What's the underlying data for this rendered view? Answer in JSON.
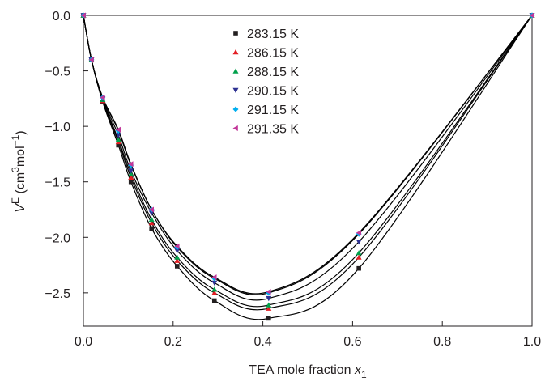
{
  "chart_data": {
    "type": "scatter",
    "x": [
      0.0,
      0.018,
      0.043,
      0.078,
      0.106,
      0.152,
      0.209,
      0.292,
      0.413,
      0.614,
      1.0
    ],
    "series": [
      {
        "name": "283.15 K",
        "color": "#231f20",
        "marker": "square",
        "values": [
          0,
          -0.4,
          -0.78,
          -1.17,
          -1.5,
          -1.92,
          -2.26,
          -2.57,
          -2.73,
          -2.28,
          0
        ]
      },
      {
        "name": "286.15 K",
        "color": "#e31e24",
        "marker": "triangle-up",
        "values": [
          0,
          -0.4,
          -0.77,
          -1.14,
          -1.46,
          -1.87,
          -2.21,
          -2.5,
          -2.64,
          -2.18,
          0
        ]
      },
      {
        "name": "288.15 K",
        "color": "#00a14b",
        "marker": "triangle-up",
        "values": [
          0,
          -0.4,
          -0.76,
          -1.12,
          -1.43,
          -1.84,
          -2.18,
          -2.47,
          -2.61,
          -2.14,
          0
        ]
      },
      {
        "name": "290.15 K",
        "color": "#2e3192",
        "marker": "triangle-down",
        "values": [
          0,
          -0.4,
          -0.75,
          -1.08,
          -1.4,
          -1.78,
          -2.12,
          -2.41,
          -2.55,
          -2.04,
          0
        ]
      },
      {
        "name": "291.15 K",
        "color": "#00aeef",
        "marker": "diamond",
        "values": [
          0,
          -0.4,
          -0.74,
          -1.04,
          -1.35,
          -1.75,
          -2.09,
          -2.37,
          -2.5,
          -1.97,
          0
        ]
      },
      {
        "name": "291.35 K",
        "color": "#c2389a",
        "marker": "triangle-left",
        "values": [
          0,
          -0.4,
          -0.74,
          -1.03,
          -1.34,
          -1.75,
          -2.08,
          -2.36,
          -2.49,
          -1.96,
          0
        ]
      }
    ],
    "fit_color": "#000000",
    "xlabel": [
      "TEA mole fraction ",
      "x",
      "1"
    ],
    "ylabel": [
      "V",
      "E",
      " (cm",
      "3",
      "mol",
      "−1",
      ")"
    ],
    "xlim": [
      0,
      1
    ],
    "ylim": [
      -2.8,
      0
    ],
    "xticks": [
      {
        "value": 0,
        "label": "0.0"
      },
      {
        "value": 0.2,
        "label": "0.2"
      },
      {
        "value": 0.4,
        "label": "0.4"
      },
      {
        "value": 0.6,
        "label": "0.6"
      },
      {
        "value": 0.8,
        "label": "0.8"
      },
      {
        "value": 1,
        "label": "1.0"
      }
    ],
    "yticks": [
      {
        "value": 0,
        "label": "0.0"
      },
      {
        "value": -0.5,
        "label": "−0.5"
      },
      {
        "value": -1,
        "label": "−1.0"
      },
      {
        "value": -1.5,
        "label": "−1.5"
      },
      {
        "value": -2,
        "label": "−2.0"
      },
      {
        "value": -2.5,
        "label": "−2.5"
      }
    ],
    "grid": false
  }
}
